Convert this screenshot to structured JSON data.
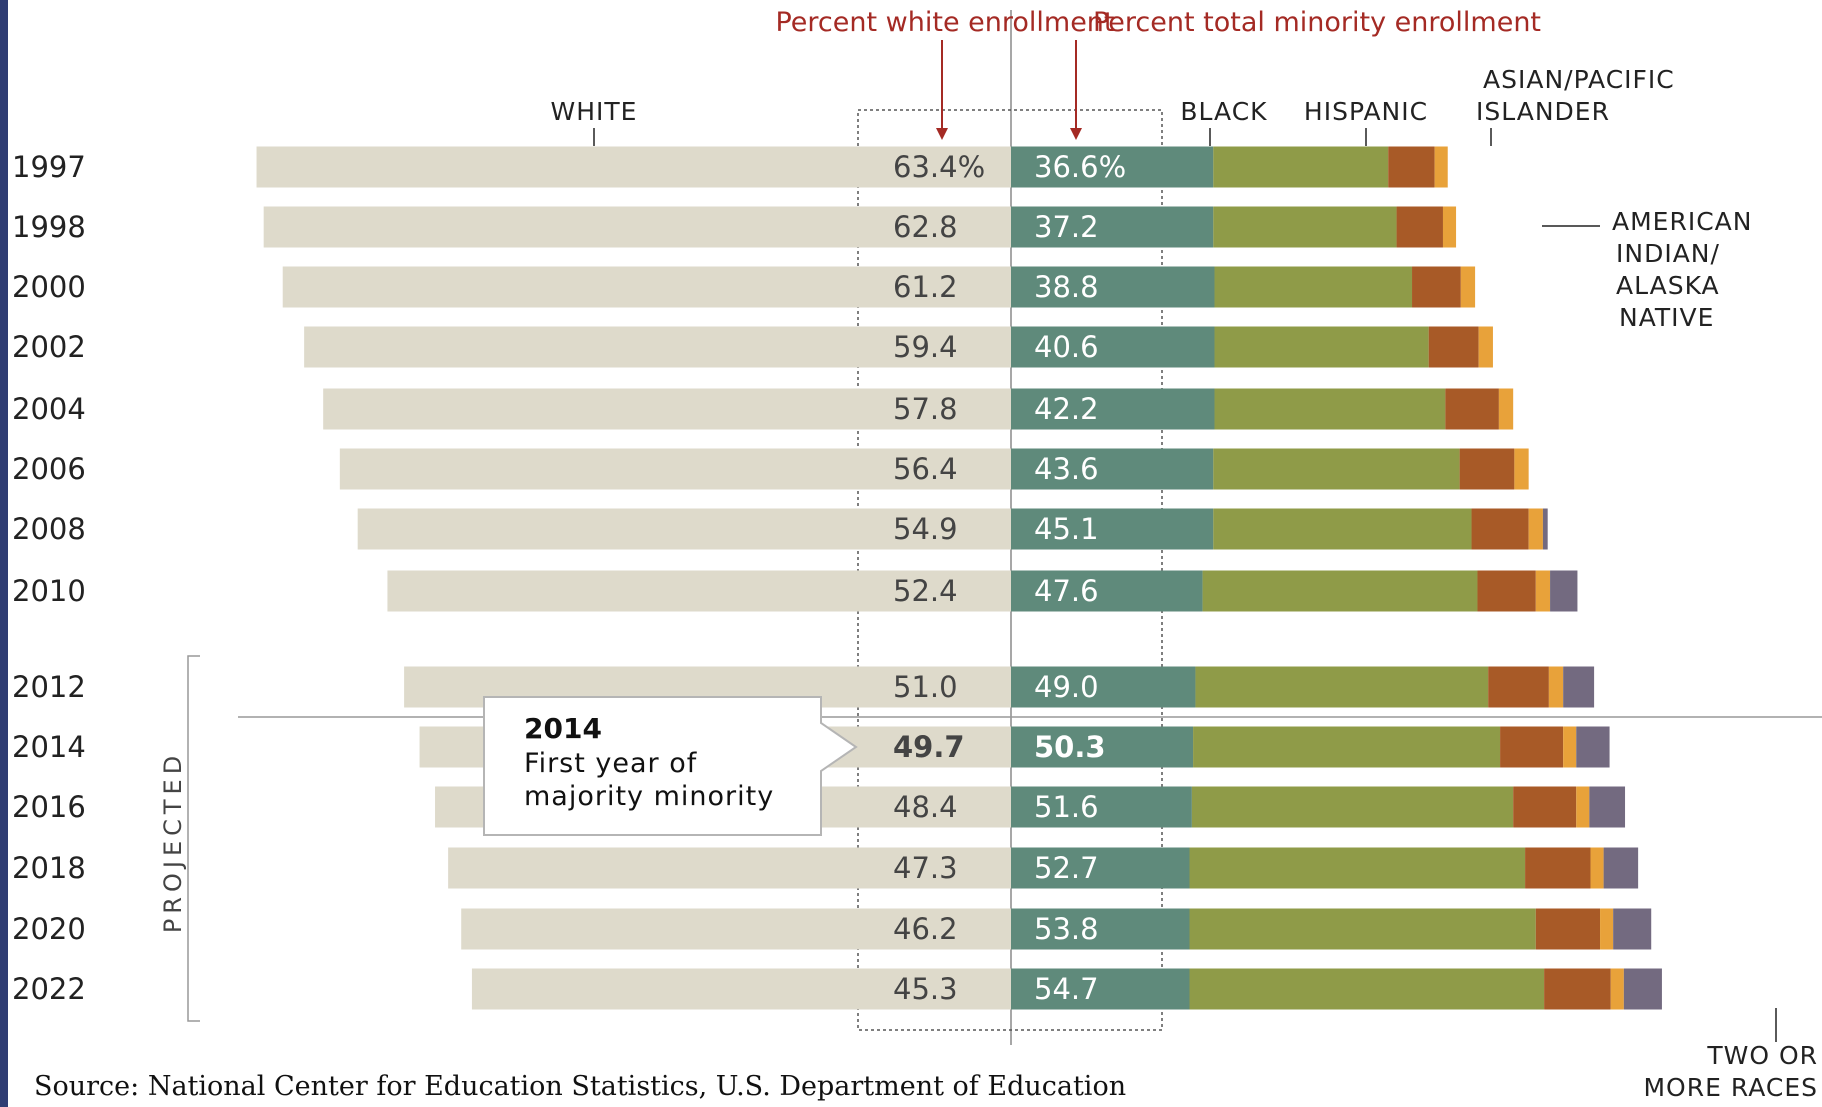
{
  "chart_data": {
    "type": "bar",
    "subtype": "stacked-horizontal",
    "header_left": "Percent white enrollment",
    "header_right": "Percent total minority enrollment",
    "categories": [
      "1997",
      "1998",
      "2000",
      "2002",
      "2004",
      "2006",
      "2008",
      "2010",
      "2012",
      "2014",
      "2016",
      "2018",
      "2020",
      "2022"
    ],
    "white_labels": [
      "63.4%",
      "62.8",
      "61.2",
      "59.4",
      "57.8",
      "56.4",
      "54.9",
      "52.4",
      "51.0",
      "49.7",
      "48.4",
      "47.3",
      "46.2",
      "45.3"
    ],
    "minority_labels": [
      "36.6%",
      "37.2",
      "38.8",
      "40.6",
      "42.2",
      "43.6",
      "45.1",
      "47.6",
      "49.0",
      "50.3",
      "51.6",
      "52.7",
      "53.8",
      "54.7"
    ],
    "series": [
      {
        "name": "WHITE",
        "values": [
          63.4,
          62.8,
          61.2,
          59.4,
          57.8,
          56.4,
          54.9,
          52.4,
          51.0,
          49.7,
          48.4,
          47.3,
          46.2,
          45.3
        ]
      },
      {
        "name": "BLACK",
        "values": [
          17.0,
          17.0,
          17.1,
          17.1,
          17.1,
          17.0,
          17.0,
          16.1,
          15.5,
          15.3,
          15.2,
          15.0,
          15.0,
          15.0
        ]
      },
      {
        "name": "HISPANIC",
        "values": [
          14.7,
          15.4,
          16.6,
          18.0,
          19.4,
          20.7,
          21.7,
          23.1,
          24.6,
          25.8,
          27.0,
          28.2,
          29.1,
          29.8
        ]
      },
      {
        "name": "ASIAN/PACIFIC ISLANDER",
        "values": [
          3.9,
          3.9,
          4.1,
          4.2,
          4.5,
          4.6,
          4.8,
          4.9,
          5.1,
          5.3,
          5.3,
          5.5,
          5.4,
          5.6
        ]
      },
      {
        "name": "AMERICAN INDIAN/ ALASKA NATIVE",
        "values": [
          1.1,
          1.1,
          1.2,
          1.2,
          1.2,
          1.2,
          1.2,
          1.2,
          1.2,
          1.1,
          1.1,
          1.1,
          1.1,
          1.1
        ]
      },
      {
        "name": "TWO OR MORE RACES",
        "values": [
          0,
          0,
          0,
          0,
          0,
          0,
          0.4,
          2.3,
          2.6,
          2.8,
          3.0,
          2.9,
          3.2,
          3.2
        ]
      }
    ],
    "colors": {
      "WHITE": "#dedacb",
      "BLACK": "#5f8a7b",
      "HISPANIC": "#8f9b48",
      "ASIAN/PACIFIC ISLANDER": "#a85a27",
      "AMERICAN INDIAN/ ALASKA NATIVE": "#e8a23a",
      "TWO OR MORE RACES": "#736a80"
    },
    "projected_label": "PROJECTED",
    "projected_from": "2012",
    "callout": {
      "title": "2014",
      "line1": "First year of",
      "line2": "majority minority"
    },
    "category_labels": {
      "white": "WHITE",
      "black": "BLACK",
      "hispanic": "HISPANIC",
      "asian_line1": "ASIAN/PACIFIC",
      "asian_line2": "ISLANDER",
      "amind_line1": "AMERICAN",
      "amind_line2": "INDIAN/",
      "amind_line3": "ALASKA",
      "amind_line4": "NATIVE",
      "two_line1": "TWO OR",
      "two_line2": "MORE RACES"
    }
  },
  "source": "Source:  National Center for Education Statistics, U.S. Department of Education"
}
